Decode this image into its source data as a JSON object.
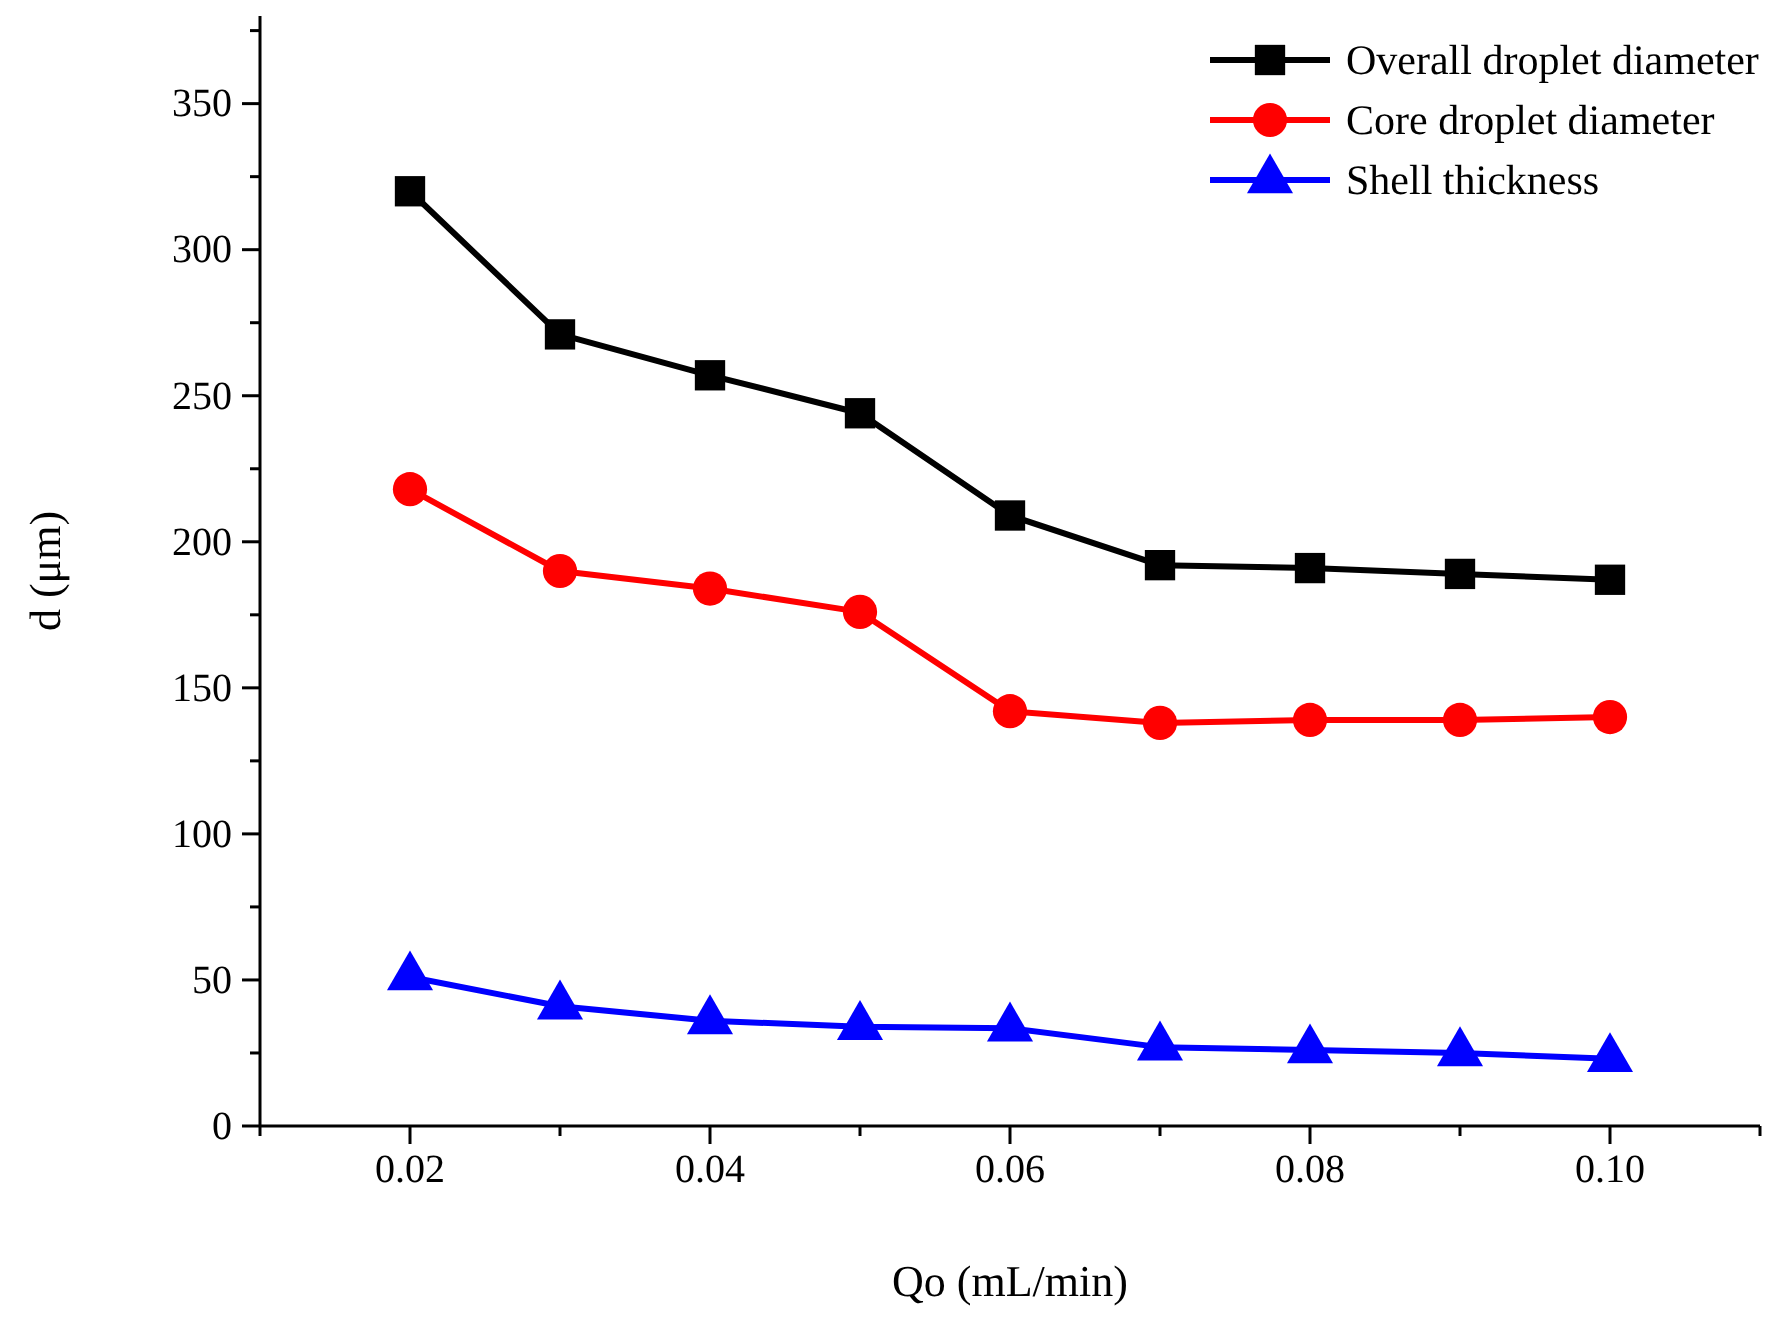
{
  "chart_data": {
    "type": "line",
    "xlabel": "Qo (mL/min)",
    "ylabel": "d (μm)",
    "x": [
      0.02,
      0.03,
      0.04,
      0.05,
      0.06,
      0.07,
      0.08,
      0.09,
      0.1
    ],
    "xlim": [
      0.01,
      0.11
    ],
    "xticks": [
      {
        "value": 0.01,
        "label": null
      },
      {
        "value": 0.02,
        "label": "0.02"
      },
      {
        "value": 0.03,
        "label": null
      },
      {
        "value": 0.04,
        "label": "0.04"
      },
      {
        "value": 0.05,
        "label": null
      },
      {
        "value": 0.06,
        "label": "0.06"
      },
      {
        "value": 0.07,
        "label": null
      },
      {
        "value": 0.08,
        "label": "0.08"
      },
      {
        "value": 0.09,
        "label": null
      },
      {
        "value": 0.1,
        "label": "0.10"
      },
      {
        "value": 0.11,
        "label": null
      }
    ],
    "ylim": [
      0,
      380
    ],
    "yticks": [
      0,
      {
        "value": 25,
        "label": null
      },
      50,
      {
        "value": 75,
        "label": null
      },
      100,
      {
        "value": 125,
        "label": null
      },
      150,
      {
        "value": 175,
        "label": null
      },
      200,
      {
        "value": 225,
        "label": null
      },
      250,
      {
        "value": 275,
        "label": null
      },
      300,
      {
        "value": 325,
        "label": null
      },
      350,
      {
        "value": 375,
        "label": null
      }
    ],
    "series": [
      {
        "name": "Overall droplet diameter",
        "color": "#000000",
        "marker": "square",
        "values": [
          320,
          271,
          257,
          244,
          209,
          192,
          191,
          189,
          187
        ]
      },
      {
        "name": "Core droplet diameter",
        "color": "#ff0000",
        "marker": "circle",
        "values": [
          218,
          190,
          184,
          176,
          142,
          138,
          139,
          139,
          140
        ]
      },
      {
        "name": "Shell thickness",
        "color": "#0000ff",
        "marker": "triangle",
        "values": [
          51,
          41,
          36,
          34,
          33.5,
          27,
          26,
          25,
          23
        ]
      }
    ],
    "legend": "top right",
    "grid": false,
    "line_style": "solid"
  }
}
